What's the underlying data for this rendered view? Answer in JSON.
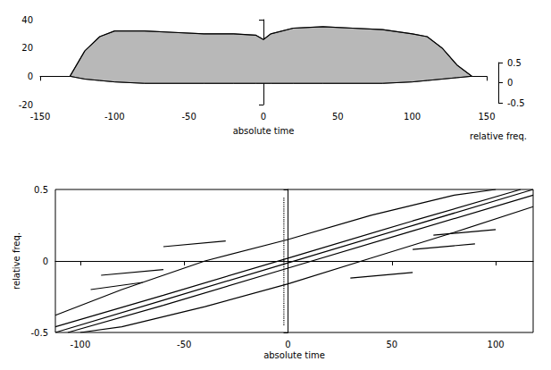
{
  "chart_data": [
    {
      "type": "surface",
      "xlabel": "absolute time",
      "zlabel": "relative freq.",
      "x": [
        -130,
        -120,
        -110,
        -100,
        -80,
        -60,
        -40,
        -20,
        -5,
        0,
        5,
        20,
        40,
        60,
        80,
        100,
        110,
        120,
        130,
        140
      ],
      "values": [
        0,
        18,
        28,
        32,
        32,
        31,
        30,
        30,
        29,
        26,
        30,
        34,
        35,
        34,
        33,
        30,
        28,
        20,
        8,
        0
      ],
      "base": [
        0,
        -2,
        -3,
        -4,
        -5,
        -5,
        -5,
        -5,
        -5,
        -5,
        -5,
        -5,
        -5,
        -5,
        -5,
        -4,
        -3,
        -2,
        -1,
        0
      ],
      "xlim": [
        -150,
        150
      ],
      "xticks": [
        -150,
        -100,
        -50,
        0,
        50,
        100,
        150
      ],
      "ylim": [
        -20,
        40
      ],
      "yticks": [
        -20,
        0,
        20,
        40
      ],
      "zlim": [
        -0.5,
        0.5
      ],
      "zticks": [
        -0.5,
        0,
        0.5
      ]
    },
    {
      "type": "contour",
      "xlabel": "absolute time",
      "ylabel": "relative freq.",
      "xlim": [
        -112,
        118
      ],
      "xticks": [
        -100,
        -50,
        0,
        50,
        100
      ],
      "ylim": [
        -0.5,
        0.5
      ],
      "yticks": [
        -0.5,
        0,
        0.5
      ],
      "lines": [
        {
          "x": [
            -112,
            -60,
            0,
            60,
            118
          ],
          "y": [
            -0.5,
            -0.274,
            -0.013,
            0.248,
            0.5
          ]
        },
        {
          "x": [
            -112,
            -60,
            0,
            60,
            112
          ],
          "y": [
            -0.46,
            -0.24,
            0.02,
            0.28,
            0.5
          ]
        },
        {
          "x": [
            -106,
            -60,
            0,
            60,
            118
          ],
          "y": [
            -0.5,
            -0.31,
            -0.05,
            0.21,
            0.46
          ]
        },
        {
          "x": [
            -112,
            -80,
            -40,
            0,
            40,
            80,
            100
          ],
          "y": [
            -0.38,
            -0.2,
            0.0,
            0.15,
            0.32,
            0.46,
            0.5
          ]
        },
        {
          "x": [
            -100,
            -80,
            -40,
            0,
            40,
            80,
            118
          ],
          "y": [
            -0.5,
            -0.46,
            -0.32,
            -0.16,
            0.02,
            0.2,
            0.38
          ]
        },
        {
          "x": [
            -95,
            -70
          ],
          "y": [
            -0.2,
            -0.15
          ]
        },
        {
          "x": [
            -90,
            -60
          ],
          "y": [
            -0.1,
            -0.06
          ]
        },
        {
          "x": [
            -60,
            -30
          ],
          "y": [
            0.1,
            0.14
          ]
        },
        {
          "x": [
            30,
            60
          ],
          "y": [
            -0.12,
            -0.08
          ]
        },
        {
          "x": [
            60,
            90
          ],
          "y": [
            0.08,
            0.12
          ]
        },
        {
          "x": [
            70,
            100
          ],
          "y": [
            0.18,
            0.22
          ]
        },
        {
          "x": [
            -2,
            -2
          ],
          "y": [
            -0.45,
            0.45
          ],
          "line_style": "dotted"
        }
      ]
    }
  ]
}
